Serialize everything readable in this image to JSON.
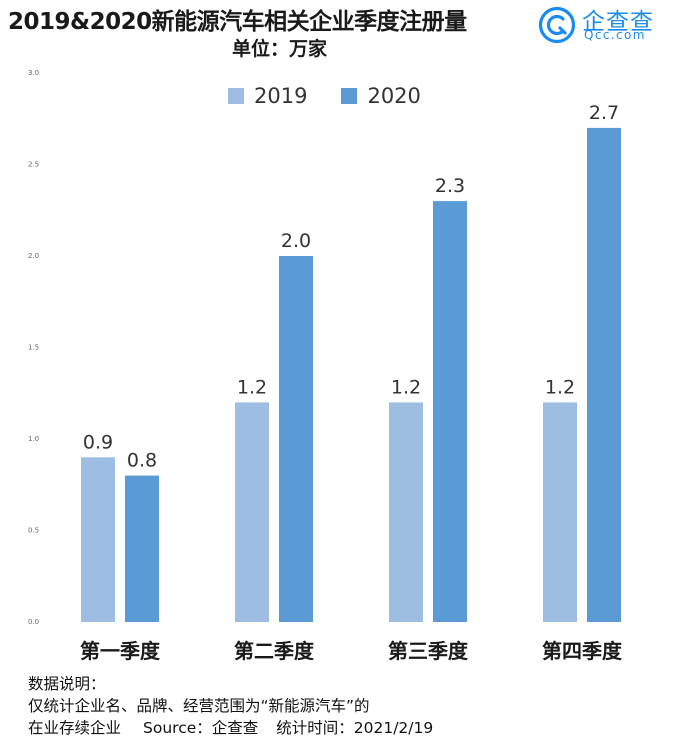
{
  "header": {
    "title": "2019&2020新能源汽车相关企业季度注册量",
    "unit": "单位：万家"
  },
  "brand": {
    "name": "企查查",
    "domain": "Qcc.com",
    "icon": "qcc-logo-icon",
    "color": "#1a8cf0"
  },
  "chart_data": {
    "type": "bar",
    "categories": [
      "第一季度",
      "第二季度",
      "第三季度",
      "第四季度"
    ],
    "series": [
      {
        "name": "2019",
        "values": [
          0.9,
          1.2,
          1.2,
          1.2
        ],
        "labels": [
          "0.9",
          "1.2",
          "1.2",
          "1.2"
        ],
        "color": "#9dbde3"
      },
      {
        "name": "2020",
        "values": [
          0.8,
          2.0,
          2.3,
          2.7
        ],
        "labels": [
          "0.8",
          "2.0",
          "2.3",
          "2.7"
        ],
        "color": "#5b9bd5"
      }
    ],
    "ylim": [
      0,
      3
    ],
    "yticks": [
      "0.0",
      "0.5",
      "1.0",
      "1.5",
      "2.0",
      "2.5",
      "3.0"
    ],
    "legend": "top-center",
    "grid": false
  },
  "notes": {
    "heading": "数据说明：",
    "line1": "仅统计企业名、品牌、经营范围为“新能源汽车”的",
    "line2_a": "在业存续企业",
    "line2_b": "Source：企查查",
    "line2_c": "统计时间：2021/2/19"
  }
}
